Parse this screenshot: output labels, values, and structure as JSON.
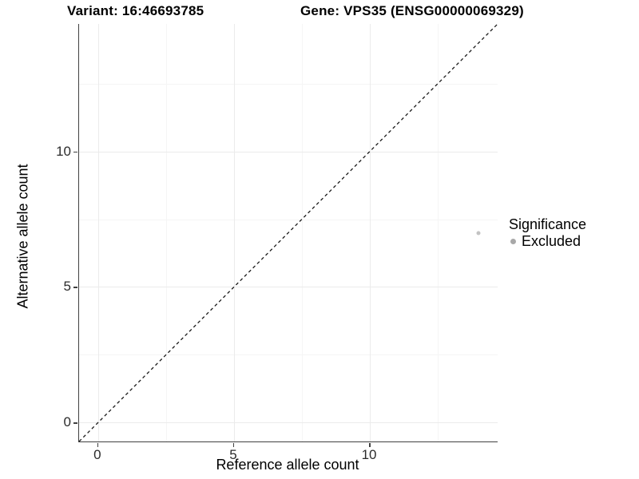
{
  "titles": {
    "left": "Variant: 16:46693785",
    "right": "Gene: VPS35 (ENSG00000069329)"
  },
  "chart_data": {
    "type": "scatter",
    "xlabel": "Reference allele count",
    "ylabel": "Alternative allele count",
    "xlim": [
      -0.7,
      14.7
    ],
    "ylim": [
      -0.7,
      14.7
    ],
    "x_major_ticks": [
      0,
      5,
      10
    ],
    "y_major_ticks": [
      0,
      5,
      10
    ],
    "x_minor_ticks": [
      2.5,
      7.5,
      12.5
    ],
    "y_minor_ticks": [
      2.5,
      7.5,
      12.5
    ],
    "tick_labels": [
      "0",
      "5",
      "10"
    ],
    "grid": "on",
    "points": [
      {
        "x": 14,
        "y": 7,
        "series": "Excluded"
      }
    ],
    "identity_line": {
      "slope": 1,
      "intercept": 0,
      "style": "dashed",
      "color": "#1a1a1a"
    },
    "legend": {
      "title": "Significance",
      "position": "right",
      "items": [
        {
          "label": "Excluded",
          "color": "#a8a8a8"
        }
      ]
    },
    "colors": {
      "point_excluded": "#c3c3c3",
      "grid_major": "#ebebeb",
      "grid_minor": "#f5f5f5",
      "axis_line": "#404040"
    }
  }
}
